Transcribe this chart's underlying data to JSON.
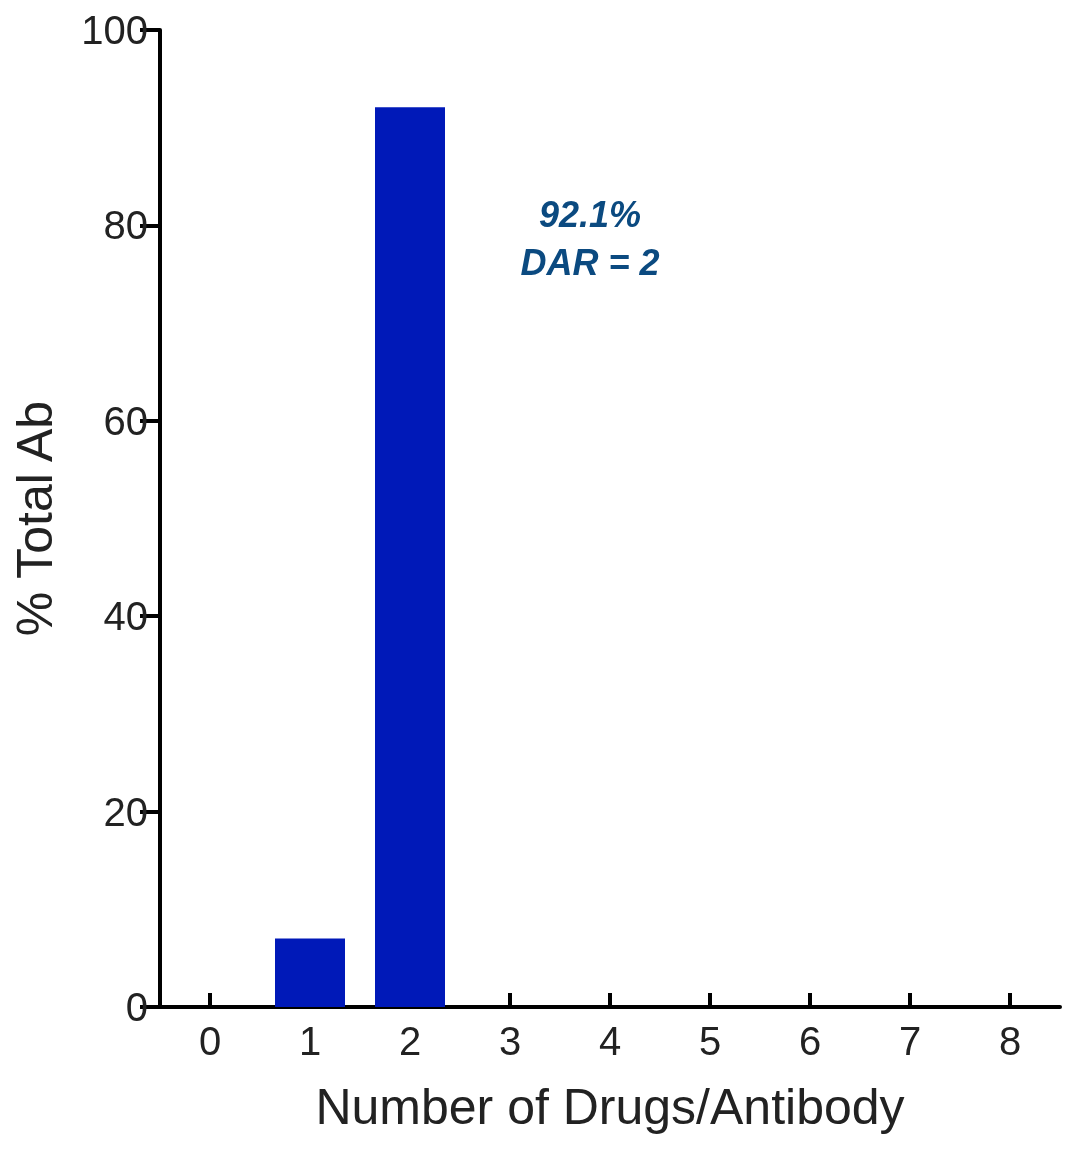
{
  "chart_data": {
    "type": "bar",
    "xlabel": "Number of Drugs/Antibody",
    "ylabel": "% Total Ab",
    "categories": [
      "0",
      "1",
      "2",
      "3",
      "4",
      "5",
      "6",
      "7",
      "8"
    ],
    "values": [
      0,
      7,
      92.1,
      0,
      0,
      0,
      0,
      0,
      0
    ],
    "color": "#0019b8",
    "ylim": [
      0,
      100
    ],
    "yticks": [
      0,
      20,
      40,
      60,
      80,
      100
    ],
    "grid": false,
    "annotations": [
      "92.1%\nDAR = 2"
    ]
  }
}
